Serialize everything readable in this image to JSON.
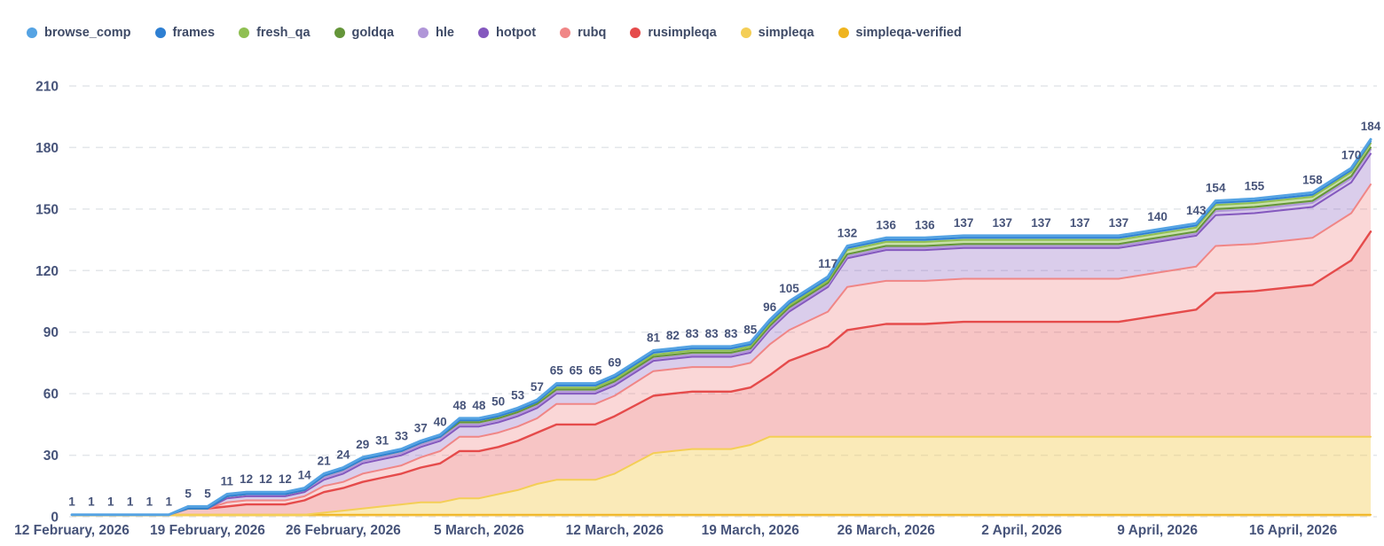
{
  "page": {
    "background": "#FFFFFF"
  },
  "chart_data": {
    "type": "area",
    "stacked": true,
    "title": "",
    "xlabel": "",
    "ylabel": "",
    "ylim": [
      0,
      210
    ],
    "y_ticks": [
      0,
      30,
      60,
      90,
      120,
      150,
      180,
      210
    ],
    "grid": "horizontal-dashed",
    "legend_position": "top-left",
    "axis_label_color": "#47547A",
    "value_label_color": "#47547A",
    "grid_color": "#E3E6EA",
    "x_ticks": [
      {
        "label": "12 February, 2026",
        "date": "2026-02-12"
      },
      {
        "label": "19 February, 2026",
        "date": "2026-02-19"
      },
      {
        "label": "26 February, 2026",
        "date": "2026-02-26"
      },
      {
        "label": "5 March, 2026",
        "date": "2026-03-05"
      },
      {
        "label": "12 March, 2026",
        "date": "2026-03-12"
      },
      {
        "label": "19 March, 2026",
        "date": "2026-03-19"
      },
      {
        "label": "26 March, 2026",
        "date": "2026-03-26"
      },
      {
        "label": "2 April, 2026",
        "date": "2026-04-02"
      },
      {
        "label": "9 April, 2026",
        "date": "2026-04-09"
      },
      {
        "label": "16 April, 2026",
        "date": "2026-04-16"
      }
    ],
    "x_dates": [
      "2026-02-12",
      "2026-02-13",
      "2026-02-14",
      "2026-02-15",
      "2026-02-16",
      "2026-02-17",
      "2026-02-18",
      "2026-02-19",
      "2026-02-20",
      "2026-02-21",
      "2026-02-22",
      "2026-02-23",
      "2026-02-24",
      "2026-02-25",
      "2026-02-26",
      "2026-02-27",
      "2026-02-28",
      "2026-03-01",
      "2026-03-02",
      "2026-03-03",
      "2026-03-04",
      "2026-03-05",
      "2026-03-06",
      "2026-03-07",
      "2026-03-08",
      "2026-03-09",
      "2026-03-10",
      "2026-03-11",
      "2026-03-12",
      "2026-03-14",
      "2026-03-15",
      "2026-03-16",
      "2026-03-17",
      "2026-03-18",
      "2026-03-19",
      "2026-03-20",
      "2026-03-21",
      "2026-03-23",
      "2026-03-24",
      "2026-03-26",
      "2026-03-28",
      "2026-03-30",
      "2026-04-01",
      "2026-04-03",
      "2026-04-05",
      "2026-04-07",
      "2026-04-09",
      "2026-04-11",
      "2026-04-12",
      "2026-04-14",
      "2026-04-17",
      "2026-04-19",
      "2026-04-20"
    ],
    "total_labels": [
      1,
      1,
      1,
      1,
      1,
      1,
      5,
      5,
      11,
      12,
      12,
      12,
      14,
      21,
      24,
      29,
      31,
      33,
      37,
      40,
      48,
      48,
      50,
      53,
      57,
      65,
      65,
      65,
      69,
      81,
      82,
      83,
      83,
      83,
      85,
      96,
      105,
      117,
      132,
      136,
      136,
      137,
      137,
      137,
      137,
      137,
      140,
      143,
      154,
      155,
      158,
      170,
      184
    ],
    "stack_order_bottom_to_top": [
      "simpleqa-verified",
      "simpleqa",
      "rusimpleqa",
      "rubq",
      "hotpot",
      "hle",
      "goldqa",
      "fresh_qa",
      "frames",
      "browse_comp"
    ],
    "series": [
      {
        "name": "browse_comp",
        "color": "#55A3E3",
        "values": [
          0,
          0,
          0,
          0,
          0,
          0,
          1,
          1,
          1,
          1,
          1,
          1,
          1,
          1,
          1,
          1,
          1,
          1,
          1,
          1,
          1,
          1,
          1,
          1,
          1,
          1,
          1,
          1,
          1,
          1,
          1,
          1,
          1,
          1,
          1,
          1,
          1,
          1,
          1,
          1,
          1,
          1,
          1,
          1,
          1,
          1,
          1,
          1,
          1,
          1,
          1,
          1,
          1
        ]
      },
      {
        "name": "frames",
        "color": "#2E7FD2",
        "values": [
          0,
          0,
          0,
          0,
          0,
          0,
          0,
          0,
          0,
          0,
          0,
          0,
          0,
          0,
          0,
          0,
          0,
          0,
          0,
          0,
          0,
          0,
          0,
          0,
          0,
          1,
          1,
          1,
          1,
          1,
          1,
          1,
          1,
          1,
          1,
          1,
          1,
          1,
          1,
          1,
          1,
          1,
          1,
          1,
          1,
          1,
          1,
          1,
          1,
          1,
          1,
          1,
          1
        ]
      },
      {
        "name": "fresh_qa",
        "color": "#8FBF52",
        "values": [
          0,
          0,
          0,
          0,
          0,
          0,
          0,
          0,
          0,
          0,
          0,
          0,
          0,
          0,
          0,
          0,
          0,
          0,
          0,
          0,
          1,
          1,
          1,
          1,
          1,
          1,
          1,
          1,
          1,
          1,
          1,
          1,
          1,
          1,
          1,
          1,
          1,
          1,
          2,
          2,
          2,
          2,
          2,
          2,
          2,
          2,
          2,
          2,
          2,
          2,
          2,
          2,
          2
        ]
      },
      {
        "name": "goldqa",
        "color": "#649539",
        "values": [
          0,
          0,
          0,
          0,
          0,
          0,
          0,
          0,
          0,
          0,
          0,
          0,
          0,
          1,
          1,
          1,
          1,
          1,
          1,
          1,
          1,
          1,
          1,
          1,
          1,
          1,
          1,
          1,
          1,
          1,
          1,
          1,
          1,
          1,
          1,
          1,
          1,
          1,
          1,
          1,
          1,
          1,
          1,
          1,
          1,
          1,
          1,
          1,
          1,
          1,
          1,
          1,
          1
        ]
      },
      {
        "name": "hle",
        "color": "#B096D8",
        "values": [
          0,
          0,
          0,
          0,
          0,
          0,
          0,
          0,
          1,
          1,
          1,
          1,
          1,
          1,
          1,
          1,
          1,
          1,
          1,
          1,
          1,
          1,
          1,
          1,
          1,
          1,
          1,
          1,
          1,
          1,
          1,
          1,
          1,
          1,
          1,
          1,
          1,
          1,
          1,
          1,
          1,
          1,
          1,
          1,
          1,
          1,
          1,
          1,
          2,
          2,
          2,
          2,
          2
        ]
      },
      {
        "name": "hotpot",
        "color": "#8458BE",
        "values": [
          0,
          0,
          0,
          0,
          0,
          0,
          0,
          0,
          2,
          2,
          2,
          2,
          2,
          3,
          4,
          5,
          5,
          5,
          5,
          5,
          5,
          5,
          5,
          5,
          5,
          5,
          5,
          5,
          5,
          5,
          5,
          5,
          5,
          5,
          5,
          7,
          9,
          12,
          14,
          15,
          15,
          15,
          15,
          15,
          15,
          15,
          15,
          15,
          15,
          15,
          15,
          15,
          15
        ]
      },
      {
        "name": "rubq",
        "color": "#F08686",
        "values": [
          0,
          0,
          0,
          0,
          0,
          0,
          0,
          0,
          2,
          2,
          2,
          2,
          2,
          3,
          3,
          4,
          4,
          4,
          5,
          6,
          7,
          7,
          7,
          7,
          7,
          10,
          10,
          10,
          10,
          12,
          12,
          12,
          12,
          12,
          12,
          15,
          15,
          17,
          21,
          21,
          21,
          21,
          21,
          21,
          21,
          21,
          21,
          21,
          23,
          23,
          23,
          23,
          23
        ]
      },
      {
        "name": "rusimpleqa",
        "color": "#E54B4B",
        "values": [
          0,
          0,
          0,
          0,
          0,
          0,
          3,
          3,
          4,
          5,
          5,
          5,
          7,
          10,
          11,
          13,
          14,
          15,
          17,
          19,
          23,
          23,
          23,
          24,
          25,
          27,
          27,
          27,
          28,
          28,
          28,
          28,
          28,
          28,
          28,
          30,
          37,
          44,
          52,
          55,
          55,
          56,
          56,
          56,
          56,
          56,
          59,
          62,
          70,
          71,
          74,
          86,
          100
        ]
      },
      {
        "name": "simpleqa",
        "color": "#F4CE56",
        "values": [
          0,
          0,
          0,
          0,
          0,
          0,
          0,
          0,
          0,
          0,
          0,
          0,
          0,
          1,
          2,
          3,
          4,
          5,
          6,
          6,
          8,
          8,
          10,
          12,
          15,
          17,
          17,
          17,
          20,
          30,
          31,
          32,
          32,
          32,
          34,
          38,
          38,
          38,
          38,
          38,
          38,
          38,
          38,
          38,
          38,
          38,
          38,
          38,
          38,
          38,
          38,
          38,
          38
        ]
      },
      {
        "name": "simpleqa-verified",
        "color": "#EFB41F",
        "values": [
          1,
          1,
          1,
          1,
          1,
          1,
          1,
          1,
          1,
          1,
          1,
          1,
          1,
          1,
          1,
          1,
          1,
          1,
          1,
          1,
          1,
          1,
          1,
          1,
          1,
          1,
          1,
          1,
          1,
          1,
          1,
          1,
          1,
          1,
          1,
          1,
          1,
          1,
          1,
          1,
          1,
          1,
          1,
          1,
          1,
          1,
          1,
          1,
          1,
          1,
          1,
          1,
          1
        ]
      }
    ]
  }
}
